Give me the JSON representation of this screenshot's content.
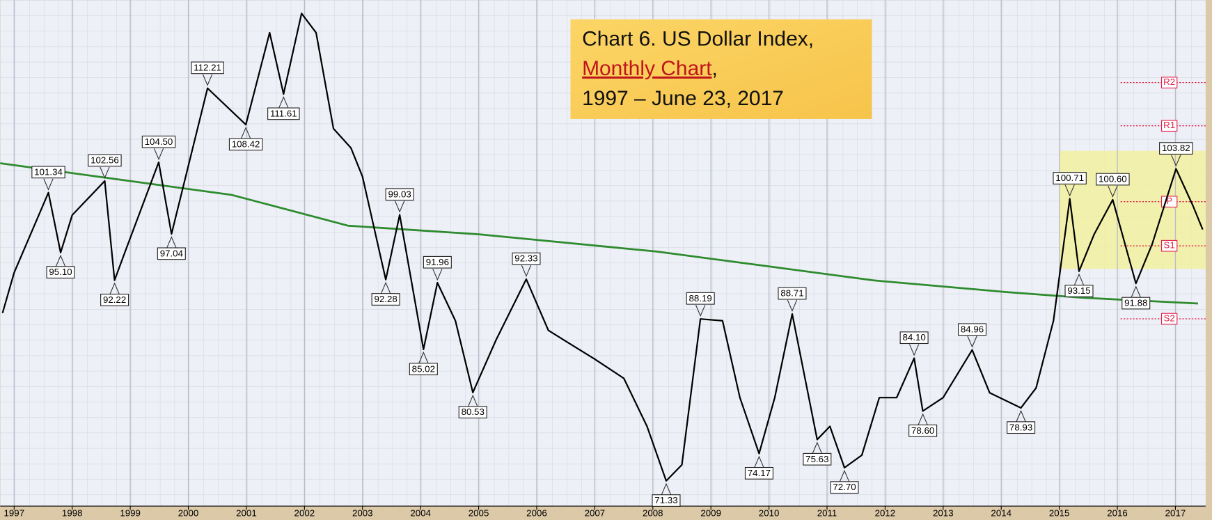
{
  "chart_data": {
    "type": "line",
    "title": {
      "line1": "Chart 6. US Dollar Index,",
      "link": "Monthly Chart",
      "link_suffix": ",",
      "line3": "1997 – June 23, 2017"
    },
    "xlim": [
      1996.76,
      2017.52
    ],
    "ylim": [
      68.7,
      121.4
    ],
    "xticks": [
      1997,
      1998,
      1999,
      2000,
      2001,
      2002,
      2003,
      2004,
      2005,
      2006,
      2007,
      2008,
      2009,
      2010,
      2011,
      2012,
      2013,
      2014,
      2015,
      2016,
      2017
    ],
    "grid": true,
    "price": {
      "color": "#000000",
      "x": [
        1996.8,
        1997.0,
        1997.59,
        1997.8,
        1998.0,
        1998.56,
        1998.73,
        1998.9,
        1999.49,
        1999.71,
        2000.33,
        2000.99,
        2001.4,
        2001.64,
        2001.95,
        2002.2,
        2002.5,
        2002.8,
        2003.0,
        2003.4,
        2003.64,
        2004.05,
        2004.29,
        2004.6,
        2004.9,
        2005.3,
        2005.82,
        2006.2,
        2006.6,
        2007.0,
        2007.5,
        2007.9,
        2008.23,
        2008.5,
        2008.82,
        2009.2,
        2009.5,
        2009.83,
        2010.1,
        2010.4,
        2010.83,
        2011.05,
        2011.3,
        2011.6,
        2011.9,
        2012.2,
        2012.5,
        2012.65,
        2013.0,
        2013.5,
        2013.8,
        2014.34,
        2014.6,
        2014.9,
        2015.18,
        2015.34,
        2015.6,
        2015.92,
        2016.32,
        2016.6,
        2017.01,
        2017.3,
        2017.47
      ],
      "values": [
        88.8,
        93,
        101.34,
        95.1,
        99,
        102.56,
        92.22,
        95,
        104.5,
        97.04,
        112.21,
        108.42,
        118,
        111.61,
        120,
        118,
        108,
        106,
        103,
        92.28,
        99.03,
        85.02,
        91.96,
        88,
        80.53,
        86,
        92.33,
        87,
        85.5,
        84,
        82,
        77,
        71.33,
        73,
        88.19,
        88,
        80,
        74.17,
        80,
        88.71,
        75.63,
        77,
        72.7,
        74,
        80,
        80,
        84.1,
        78.6,
        80,
        84.96,
        80.5,
        78.93,
        81,
        88,
        100.71,
        93.15,
        97,
        100.6,
        91.88,
        96,
        103.82,
        100,
        97.5
      ]
    },
    "moving_average": {
      "color": "#2e8b2e",
      "x": [
        1996.76,
        2000.75,
        2002.75,
        2005.01,
        2008.07,
        2010.07,
        2011.8,
        2014.06,
        2015.39,
        2017.39
      ],
      "values": [
        104.4,
        101.1,
        97.9,
        97.0,
        95.2,
        93.6,
        92.2,
        91.0,
        90.4,
        89.8
      ]
    },
    "peaks": {
      "x": [
        1997.59,
        1998.56,
        1999.49,
        2000.33,
        2003.64,
        2004.29,
        2005.82,
        2008.82,
        2010.4,
        2012.5,
        2013.5,
        2015.18,
        2015.92,
        2017.01
      ],
      "values": [
        101.34,
        102.56,
        104.5,
        112.21,
        99.03,
        91.96,
        92.33,
        88.19,
        88.71,
        84.1,
        84.96,
        100.71,
        100.6,
        103.82
      ],
      "value_labels": [
        "101.34",
        "102.56",
        "104.50",
        "112.21",
        "99.03",
        "91.96",
        "92.33",
        "88.19",
        "88.71",
        "84.10",
        "84.96",
        "100.71",
        "100.60",
        "103.82"
      ]
    },
    "troughs": {
      "x": [
        1997.8,
        1998.73,
        1999.71,
        2000.99,
        2001.64,
        2003.4,
        2004.05,
        2004.9,
        2008.23,
        2009.83,
        2010.83,
        2011.3,
        2012.65,
        2014.34,
        2015.34,
        2016.32
      ],
      "values": [
        95.1,
        92.22,
        97.04,
        108.42,
        111.61,
        92.28,
        85.02,
        80.53,
        71.33,
        74.17,
        75.63,
        72.7,
        78.6,
        78.93,
        93.15,
        91.88
      ],
      "value_labels": [
        "95.10",
        "92.22",
        "97.04",
        "108.42",
        "111.61",
        "92.28",
        "85.02",
        "80.53",
        "71.33",
        "74.17",
        "75.63",
        "72.70",
        "78.60",
        "78.93",
        "93.15",
        "91.88"
      ]
    },
    "pivots": {
      "color": "#e0204a",
      "labels": [
        "R2",
        "R1",
        "P",
        "S1",
        "S2"
      ],
      "values": [
        112.8,
        108.3,
        100.4,
        95.8,
        88.2
      ]
    },
    "highlight": {
      "color": "#f2f0a0",
      "xlim": [
        2015.0,
        2017.52
      ],
      "ylim": [
        93.4,
        105.7
      ]
    }
  }
}
